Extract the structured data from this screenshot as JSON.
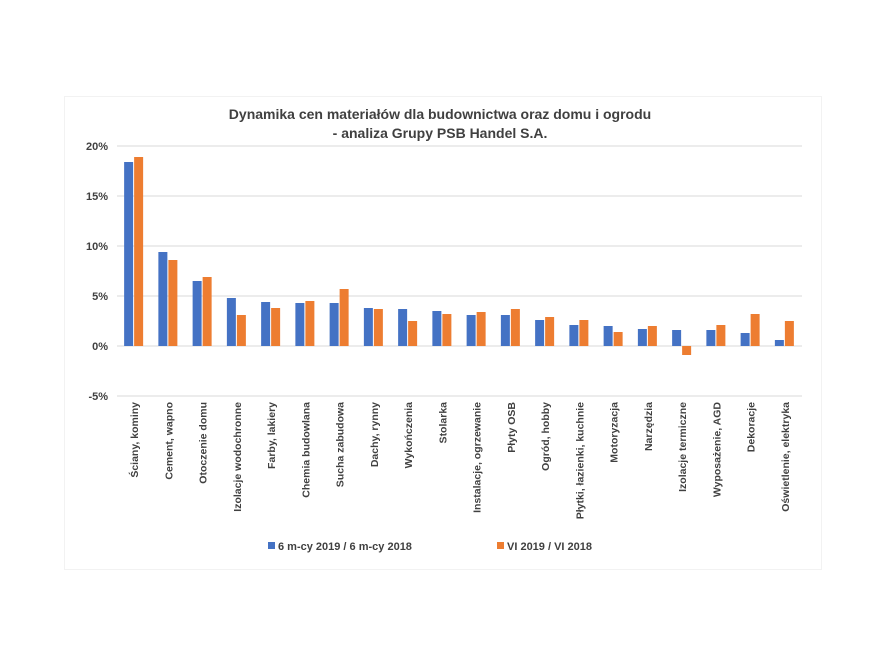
{
  "chart_data": {
    "type": "bar",
    "title": [
      "Dynamika cen materiałów dla budownictwa oraz domu i ogrodu",
      "- analiza Grupy PSB Handel S.A."
    ],
    "xlabel": "",
    "ylabel": "",
    "ylim": [
      -5,
      20
    ],
    "yticks": [
      20,
      15,
      10,
      5,
      0,
      -5
    ],
    "ytick_labels": [
      "20%",
      "15%",
      "10%",
      "5%",
      "0%",
      "-5%"
    ],
    "grid": true,
    "legend": "bottom",
    "categories": [
      "Ściany, kominy",
      "Cement, wapno",
      "Otoczenie domu",
      "Izolacje wodochronne",
      "Farby, lakiery",
      "Chemia budowlana",
      "Sucha zabudowa",
      "Dachy, rynny",
      "Wykończenia",
      "Stolarka",
      "Instalacje, ogrzewanie",
      "Płyty OSB",
      "Ogród, hobby",
      "Płytki, łazienki, kuchnie",
      "Motoryzacja",
      "Narzędzia",
      "Izolacje termiczne",
      "Wyposażenie, AGD",
      "Dekoracje",
      "Oświetlenie, elektryka"
    ],
    "series": [
      {
        "name": "6 m-cy 2019 / 6 m-cy 2018",
        "color": "#4472c4",
        "values": [
          18.4,
          9.4,
          6.5,
          4.8,
          4.4,
          4.3,
          4.3,
          3.8,
          3.7,
          3.5,
          3.1,
          3.1,
          2.6,
          2.1,
          2.0,
          1.7,
          1.6,
          1.6,
          1.3,
          0.6
        ]
      },
      {
        "name": "VI 2019 / VI 2018",
        "color": "#ed7d31",
        "values": [
          18.9,
          8.6,
          6.9,
          3.1,
          3.8,
          4.5,
          5.7,
          3.7,
          2.5,
          3.2,
          3.4,
          3.7,
          2.9,
          2.6,
          1.4,
          2.0,
          -0.9,
          2.1,
          3.2,
          2.5
        ]
      }
    ]
  }
}
